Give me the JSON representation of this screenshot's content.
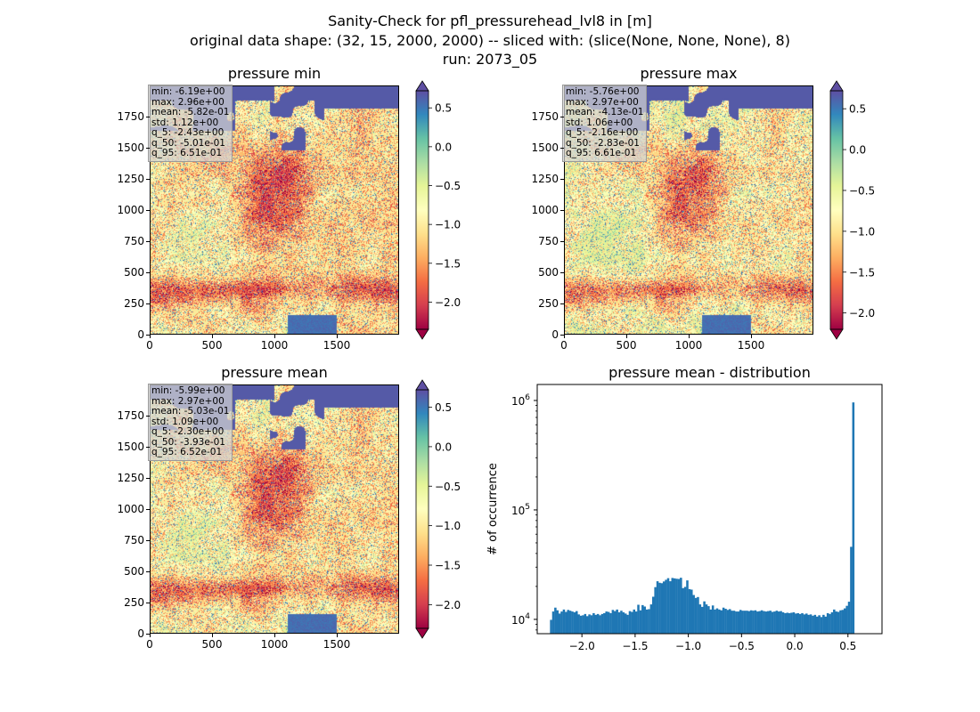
{
  "figure": {
    "title_line1": "Sanity-Check for pfl_pressurehead_lvl8 in [m]",
    "title_line2": "original data shape: (32, 15, 2000, 2000) -- sliced with: (slice(None, None, None), 8)",
    "title_line3": "run: 2073_05"
  },
  "colors": {
    "colormap": "Spectral",
    "colormap_stops": [
      "#9e0142",
      "#d53e4f",
      "#f46d43",
      "#fdae61",
      "#fee08b",
      "#ffffbf",
      "#e6f598",
      "#abdda4",
      "#66c2a5",
      "#3288bd",
      "#5e4fa2"
    ],
    "hist_bar": "#1f77b4"
  },
  "chart_data": [
    {
      "type": "heatmap",
      "title": "pressure min",
      "x_ticks": [
        "0",
        "500",
        "1000",
        "1500"
      ],
      "y_ticks": [
        "0",
        "250",
        "500",
        "750",
        "1000",
        "1250",
        "1500",
        "1750"
      ],
      "xlim": [
        0,
        2000
      ],
      "ylim": [
        0,
        2000
      ],
      "colorbar": {
        "ticks": [
          "0.5",
          "0.0",
          "−0.5",
          "−1.0",
          "−1.5",
          "−2.0"
        ],
        "tick_values": [
          0.5,
          0.0,
          -0.5,
          -1.0,
          -1.5,
          -2.0
        ],
        "vmin": -2.35,
        "vmax": 0.72,
        "extend": "both"
      },
      "stats": [
        "min: -6.19e+00",
        "max: 2.96e+00",
        "mean: -5.82e-01",
        "std: 1.12e+00",
        "q_5: -2.43e+00",
        "q_50: -5.01e-01",
        "q_95: 6.51e-01"
      ]
    },
    {
      "type": "heatmap",
      "title": "pressure max",
      "x_ticks": [
        "0",
        "500",
        "1000",
        "1500"
      ],
      "y_ticks": [
        "0",
        "250",
        "500",
        "750",
        "1000",
        "1250",
        "1500",
        "1750"
      ],
      "xlim": [
        0,
        2000
      ],
      "ylim": [
        0,
        2000
      ],
      "colorbar": {
        "ticks": [
          "0.5",
          "0.0",
          "−0.5",
          "−1.0",
          "−1.5",
          "−2.0"
        ],
        "tick_values": [
          0.5,
          0.0,
          -0.5,
          -1.0,
          -1.5,
          -2.0
        ],
        "vmin": -2.2,
        "vmax": 0.72,
        "extend": "both"
      },
      "stats": [
        "min: -5.76e+00",
        "max: 2.97e+00",
        "mean: -4.13e-01",
        "std: 1.06e+00",
        "q_5: -2.16e+00",
        "q_50: -2.83e-01",
        "q_95: 6.61e-01"
      ]
    },
    {
      "type": "heatmap",
      "title": "pressure mean",
      "x_ticks": [
        "0",
        "500",
        "1000",
        "1500"
      ],
      "y_ticks": [
        "0",
        "250",
        "500",
        "750",
        "1000",
        "1250",
        "1500",
        "1750"
      ],
      "xlim": [
        0,
        2000
      ],
      "ylim": [
        0,
        2000
      ],
      "colorbar": {
        "ticks": [
          "0.5",
          "0.0",
          "−0.5",
          "−1.0",
          "−1.5",
          "−2.0"
        ],
        "tick_values": [
          0.5,
          0.0,
          -0.5,
          -1.0,
          -1.5,
          -2.0
        ],
        "vmin": -2.3,
        "vmax": 0.72,
        "extend": "both"
      },
      "stats": [
        "min: -5.99e+00",
        "max: 2.97e+00",
        "mean: -5.03e-01",
        "std: 1.09e+00",
        "q_5: -2.30e+00",
        "q_50: -3.93e-01",
        "q_95: 6.52e-01"
      ]
    },
    {
      "type": "bar",
      "title": "pressure mean - distribution",
      "ylabel": "# of occurrence",
      "yscale": "log",
      "x_ticks": [
        "−2.0",
        "−1.5",
        "−1.0",
        "−0.5",
        "0.0",
        "0.5"
      ],
      "x_tick_values": [
        -2.0,
        -1.5,
        -1.0,
        -0.5,
        0.0,
        0.5
      ],
      "y_ticks": [
        {
          "base": "10",
          "exp": "4"
        },
        {
          "base": "10",
          "exp": "5"
        },
        {
          "base": "10",
          "exp": "6"
        }
      ],
      "y_tick_values": [
        10000,
        100000,
        1000000
      ],
      "xlim": [
        -2.42,
        0.82
      ],
      "ylim": [
        7400,
        1400000
      ],
      "bin_start": -2.3,
      "bin_width": 0.02,
      "counts": [
        9900,
        11800,
        12800,
        12100,
        11300,
        11800,
        12300,
        11700,
        12200,
        12000,
        11800,
        11600,
        11900,
        11100,
        10800,
        10900,
        11200,
        10700,
        11100,
        10900,
        11400,
        11000,
        11200,
        10900,
        11200,
        11400,
        11800,
        11700,
        11400,
        12200,
        11900,
        12300,
        11600,
        12000,
        11600,
        11300,
        11000,
        11900,
        11700,
        12300,
        11800,
        13600,
        12100,
        13500,
        13100,
        12300,
        12400,
        13700,
        16100,
        19700,
        22300,
        21600,
        21400,
        22200,
        23000,
        23800,
        22300,
        23900,
        23700,
        23500,
        23400,
        24000,
        19300,
        19800,
        22700,
        18900,
        18700,
        16700,
        15700,
        16000,
        13700,
        13000,
        14600,
        13700,
        13200,
        12300,
        13400,
        12300,
        12600,
        12300,
        12100,
        12800,
        12500,
        12200,
        12400,
        12000,
        12000,
        11800,
        11800,
        12200,
        12000,
        12000,
        12000,
        11900,
        12100,
        12000,
        12100,
        11800,
        11900,
        12100,
        11900,
        11800,
        11900,
        12000,
        11700,
        11800,
        12000,
        11800,
        11900,
        11600,
        11400,
        11500,
        11400,
        11500,
        11600,
        11300,
        11400,
        11200,
        11400,
        11100,
        11300,
        11000,
        11100,
        10800,
        11000,
        10600,
        10900,
        10500,
        11000,
        10600,
        11400,
        11200,
        11600,
        12300,
        11800,
        11700,
        12100,
        12200,
        12600,
        13300,
        14500,
        46000,
        960000
      ]
    }
  ]
}
